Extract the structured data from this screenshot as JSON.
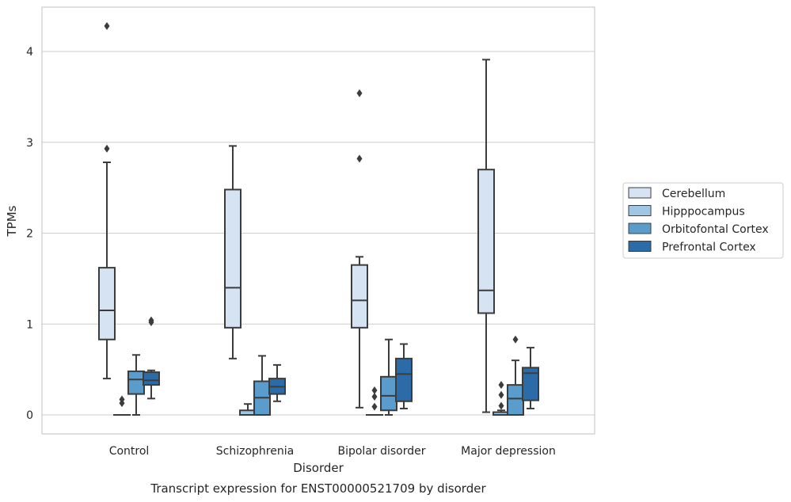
{
  "chart_data": {
    "type": "boxplot",
    "xlabel": "Disorder",
    "ylabel": "TPMs",
    "caption": "Transcript expression for ENST00000521709 by disorder",
    "ylim": [
      -0.2,
      4.5
    ],
    "yticks": [
      0,
      1,
      2,
      3,
      4
    ],
    "grid": true,
    "legend_position": "right",
    "categories": [
      "Control",
      "Schizophrenia",
      "Bipolar disorder",
      "Major depression"
    ],
    "series": [
      {
        "name": "Cerebellum",
        "color": "#d6e3f3",
        "boxes": [
          {
            "whislo": 0.4,
            "q1": 0.83,
            "med": 1.15,
            "q3": 1.62,
            "whishi": 2.78,
            "fliers": [
              2.93,
              4.28
            ]
          },
          {
            "whislo": 0.62,
            "q1": 0.96,
            "med": 1.4,
            "q3": 2.48,
            "whishi": 2.96,
            "fliers": []
          },
          {
            "whislo": 0.08,
            "q1": 0.96,
            "med": 1.26,
            "q3": 1.65,
            "whishi": 1.74,
            "fliers": [
              2.82,
              3.54
            ]
          },
          {
            "whislo": 0.03,
            "q1": 1.12,
            "med": 1.37,
            "q3": 2.7,
            "whishi": 3.91,
            "fliers": []
          }
        ]
      },
      {
        "name": "Hipppocampus",
        "color": "#9fc7e3",
        "boxes": [
          {
            "whislo": 0.0,
            "q1": 0.0,
            "med": 0.0,
            "q3": 0.0,
            "whishi": 0.0,
            "fliers": [
              0.13,
              0.17
            ]
          },
          {
            "whislo": 0.0,
            "q1": 0.0,
            "med": 0.0,
            "q3": 0.05,
            "whishi": 0.12,
            "fliers": []
          },
          {
            "whislo": 0.0,
            "q1": 0.0,
            "med": 0.0,
            "q3": 0.0,
            "whishi": 0.0,
            "fliers": [
              0.09,
              0.2,
              0.27
            ]
          },
          {
            "whislo": 0.0,
            "q1": 0.0,
            "med": 0.0,
            "q3": 0.03,
            "whishi": 0.05,
            "fliers": [
              0.1,
              0.22,
              0.33
            ]
          }
        ]
      },
      {
        "name": "Orbitofontal Cortex",
        "color": "#5a9dcd",
        "boxes": [
          {
            "whislo": 0.0,
            "q1": 0.23,
            "med": 0.39,
            "q3": 0.48,
            "whishi": 0.66,
            "fliers": []
          },
          {
            "whislo": 0.0,
            "q1": 0.0,
            "med": 0.19,
            "q3": 0.37,
            "whishi": 0.65,
            "fliers": []
          },
          {
            "whislo": 0.0,
            "q1": 0.05,
            "med": 0.21,
            "q3": 0.42,
            "whishi": 0.83,
            "fliers": []
          },
          {
            "whislo": 0.0,
            "q1": 0.0,
            "med": 0.18,
            "q3": 0.33,
            "whishi": 0.6,
            "fliers": [
              0.83
            ]
          }
        ]
      },
      {
        "name": "Prefrontal Cortex",
        "color": "#2b6ba8",
        "boxes": [
          {
            "whislo": 0.18,
            "q1": 0.33,
            "med": 0.38,
            "q3": 0.47,
            "whishi": 0.49,
            "fliers": [
              1.02,
              1.04
            ]
          },
          {
            "whislo": 0.15,
            "q1": 0.23,
            "med": 0.31,
            "q3": 0.4,
            "whishi": 0.55,
            "fliers": []
          },
          {
            "whislo": 0.07,
            "q1": 0.15,
            "med": 0.45,
            "q3": 0.62,
            "whishi": 0.78,
            "fliers": []
          },
          {
            "whislo": 0.07,
            "q1": 0.16,
            "med": 0.46,
            "q3": 0.52,
            "whishi": 0.74,
            "fliers": []
          }
        ]
      }
    ]
  }
}
